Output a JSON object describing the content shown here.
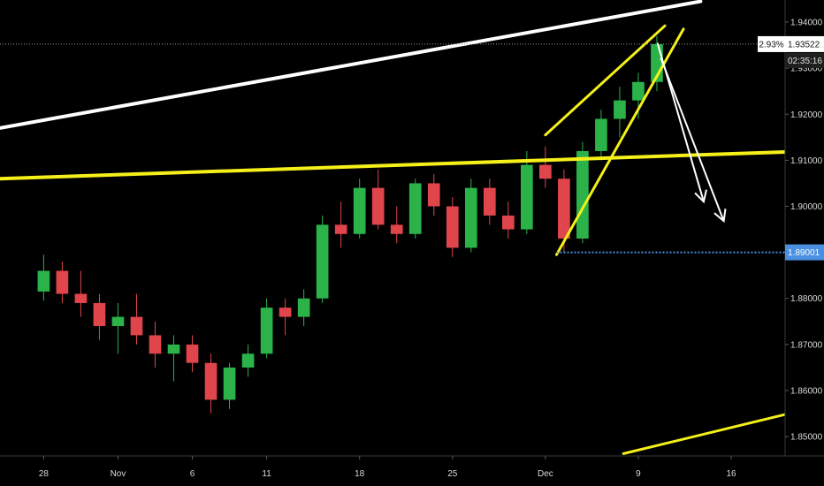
{
  "chart_data": {
    "type": "candlestick",
    "y_ticks": [
      1.94,
      1.93,
      1.92,
      1.91,
      1.9,
      1.89,
      1.88,
      1.87,
      1.86,
      1.85
    ],
    "y_tick_labels": [
      "1.94000",
      "1.93000",
      "1.92000",
      "1.91000",
      "1.90000",
      "1.89000",
      "1.88000",
      "1.87000",
      "1.86000",
      "1.85000"
    ],
    "ylim": [
      1.8458,
      1.9448
    ],
    "x_ticks": [
      {
        "label": "28",
        "index": 0
      },
      {
        "label": "Nov",
        "index": 4
      },
      {
        "label": "6",
        "index": 8
      },
      {
        "label": "11",
        "index": 12
      },
      {
        "label": "18",
        "index": 17
      },
      {
        "label": "25",
        "index": 22
      },
      {
        "label": "Dec",
        "index": 27
      },
      {
        "label": "9",
        "index": 32
      },
      {
        "label": "16",
        "index": 37
      }
    ],
    "xlim": [
      -2.35,
      39.9
    ],
    "series": [
      {
        "values": [
          {
            "o": 1.8815,
            "h": 1.8895,
            "l": 1.8795,
            "c": 1.886
          },
          {
            "o": 1.886,
            "h": 1.888,
            "l": 1.879,
            "c": 1.881
          },
          {
            "o": 1.881,
            "h": 1.886,
            "l": 1.876,
            "c": 1.879
          },
          {
            "o": 1.879,
            "h": 1.881,
            "l": 1.871,
            "c": 1.874
          },
          {
            "o": 1.874,
            "h": 1.879,
            "l": 1.868,
            "c": 1.876
          },
          {
            "o": 1.876,
            "h": 1.881,
            "l": 1.87,
            "c": 1.872
          },
          {
            "o": 1.872,
            "h": 1.875,
            "l": 1.865,
            "c": 1.868
          },
          {
            "o": 1.868,
            "h": 1.872,
            "l": 1.862,
            "c": 1.87
          },
          {
            "o": 1.87,
            "h": 1.872,
            "l": 1.864,
            "c": 1.866
          },
          {
            "o": 1.866,
            "h": 1.868,
            "l": 1.855,
            "c": 1.858
          },
          {
            "o": 1.858,
            "h": 1.866,
            "l": 1.856,
            "c": 1.865
          },
          {
            "o": 1.865,
            "h": 1.87,
            "l": 1.863,
            "c": 1.868
          },
          {
            "o": 1.868,
            "h": 1.88,
            "l": 1.867,
            "c": 1.878
          },
          {
            "o": 1.878,
            "h": 1.88,
            "l": 1.872,
            "c": 1.876
          },
          {
            "o": 1.876,
            "h": 1.882,
            "l": 1.874,
            "c": 1.88
          },
          {
            "o": 1.88,
            "h": 1.898,
            "l": 1.879,
            "c": 1.896
          },
          {
            "o": 1.896,
            "h": 1.901,
            "l": 1.891,
            "c": 1.894
          },
          {
            "o": 1.894,
            "h": 1.906,
            "l": 1.893,
            "c": 1.904
          },
          {
            "o": 1.904,
            "h": 1.908,
            "l": 1.895,
            "c": 1.896
          },
          {
            "o": 1.896,
            "h": 1.9,
            "l": 1.892,
            "c": 1.894
          },
          {
            "o": 1.894,
            "h": 1.906,
            "l": 1.893,
            "c": 1.905
          },
          {
            "o": 1.905,
            "h": 1.907,
            "l": 1.898,
            "c": 1.9
          },
          {
            "o": 1.9,
            "h": 1.902,
            "l": 1.889,
            "c": 1.891
          },
          {
            "o": 1.891,
            "h": 1.906,
            "l": 1.89,
            "c": 1.904
          },
          {
            "o": 1.904,
            "h": 1.906,
            "l": 1.896,
            "c": 1.898
          },
          {
            "o": 1.898,
            "h": 1.901,
            "l": 1.893,
            "c": 1.895
          },
          {
            "o": 1.895,
            "h": 1.912,
            "l": 1.894,
            "c": 1.909
          },
          {
            "o": 1.909,
            "h": 1.913,
            "l": 1.904,
            "c": 1.906
          },
          {
            "o": 1.906,
            "h": 1.908,
            "l": 1.89,
            "c": 1.893
          },
          {
            "o": 1.893,
            "h": 1.914,
            "l": 1.892,
            "c": 1.912
          },
          {
            "o": 1.912,
            "h": 1.921,
            "l": 1.91,
            "c": 1.919
          },
          {
            "o": 1.919,
            "h": 1.926,
            "l": 1.915,
            "c": 1.923
          },
          {
            "o": 1.923,
            "h": 1.929,
            "l": 1.919,
            "c": 1.927
          },
          {
            "o": 1.927,
            "h": 1.937,
            "l": 1.925,
            "c": 1.9352
          }
        ]
      }
    ],
    "annotations": {
      "white_channel_line": [
        {
          "x": -2.35,
          "y": 1.917
        },
        {
          "x": 35.35,
          "y": 1.9445
        }
      ],
      "yellow_horizontal_line": [
        {
          "x": -2.35,
          "y": 1.906
        },
        {
          "x": 39.9,
          "y": 1.9118
        }
      ],
      "yellow_wedge_upper": [
        {
          "x": 27.0,
          "y": 1.9155
        },
        {
          "x": 33.43,
          "y": 1.9392
        }
      ],
      "yellow_wedge_lower": [
        {
          "x": 27.6,
          "y": 1.8895
        },
        {
          "x": 34.43,
          "y": 1.9385
        }
      ],
      "yellow_bottom_line": [
        {
          "x": 31.2,
          "y": 1.8463
        },
        {
          "x": 39.9,
          "y": 1.8548
        }
      ],
      "support_dotted_line": {
        "x_start": 27.6,
        "y": 1.89001
      },
      "last_price_dotted_line": {
        "y": 1.93522
      },
      "arrows": [
        {
          "from": {
            "x": 33.03,
            "y": 1.9355
          },
          "to": {
            "x": 35.52,
            "y": 1.901
          }
        },
        {
          "from": {
            "x": 33.21,
            "y": 1.9322
          },
          "to": {
            "x": 36.6,
            "y": 1.8968
          }
        }
      ]
    },
    "badges": {
      "percent": "2.93%",
      "price": "1.93522",
      "countdown": "02:35:16",
      "support": "1.89001"
    },
    "colors": {
      "background": "#000000",
      "candle_up": "#2bb34a",
      "candle_down": "#e0454c",
      "trendline_white": "#ffffff",
      "trendline_yellow": "#f5f019",
      "support_line": "#4a90e2",
      "axis_text": "#d9d9d9"
    }
  }
}
